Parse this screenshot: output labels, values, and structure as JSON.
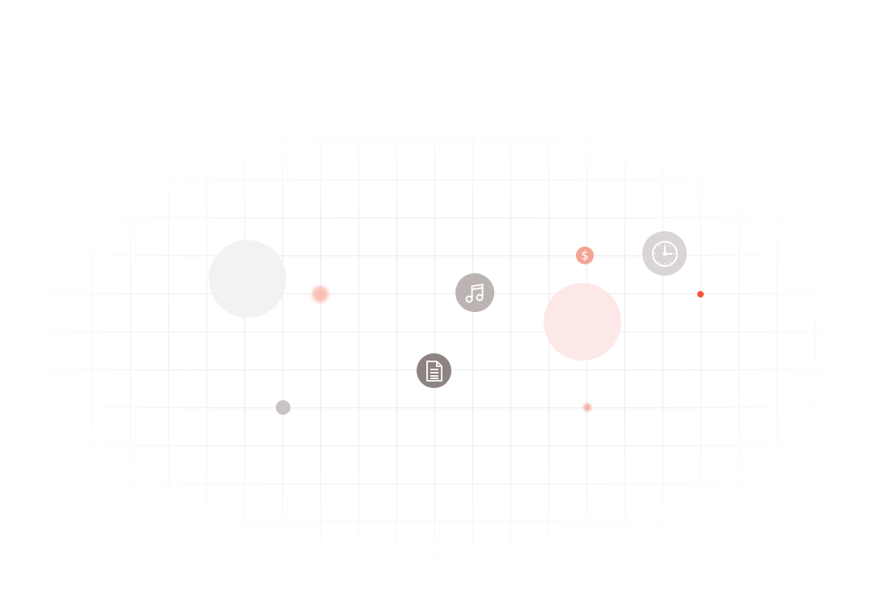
{
  "colors": {
    "grid": "#ececec",
    "music_badge": "#bcb3b3",
    "document_badge": "#8d8383",
    "clock_badge": "#d9d5d4",
    "dollar_badge": "#f5a493",
    "pink_bubble": "#fde8e8",
    "grey_bubble": "#f2f2f2",
    "red_dot": "#f5533d",
    "small_grey_dot": "#c9c3c3"
  },
  "icons": [
    "music-note-icon",
    "document-icon",
    "clock-icon",
    "dollar-icon"
  ],
  "dollar_symbol": "$"
}
